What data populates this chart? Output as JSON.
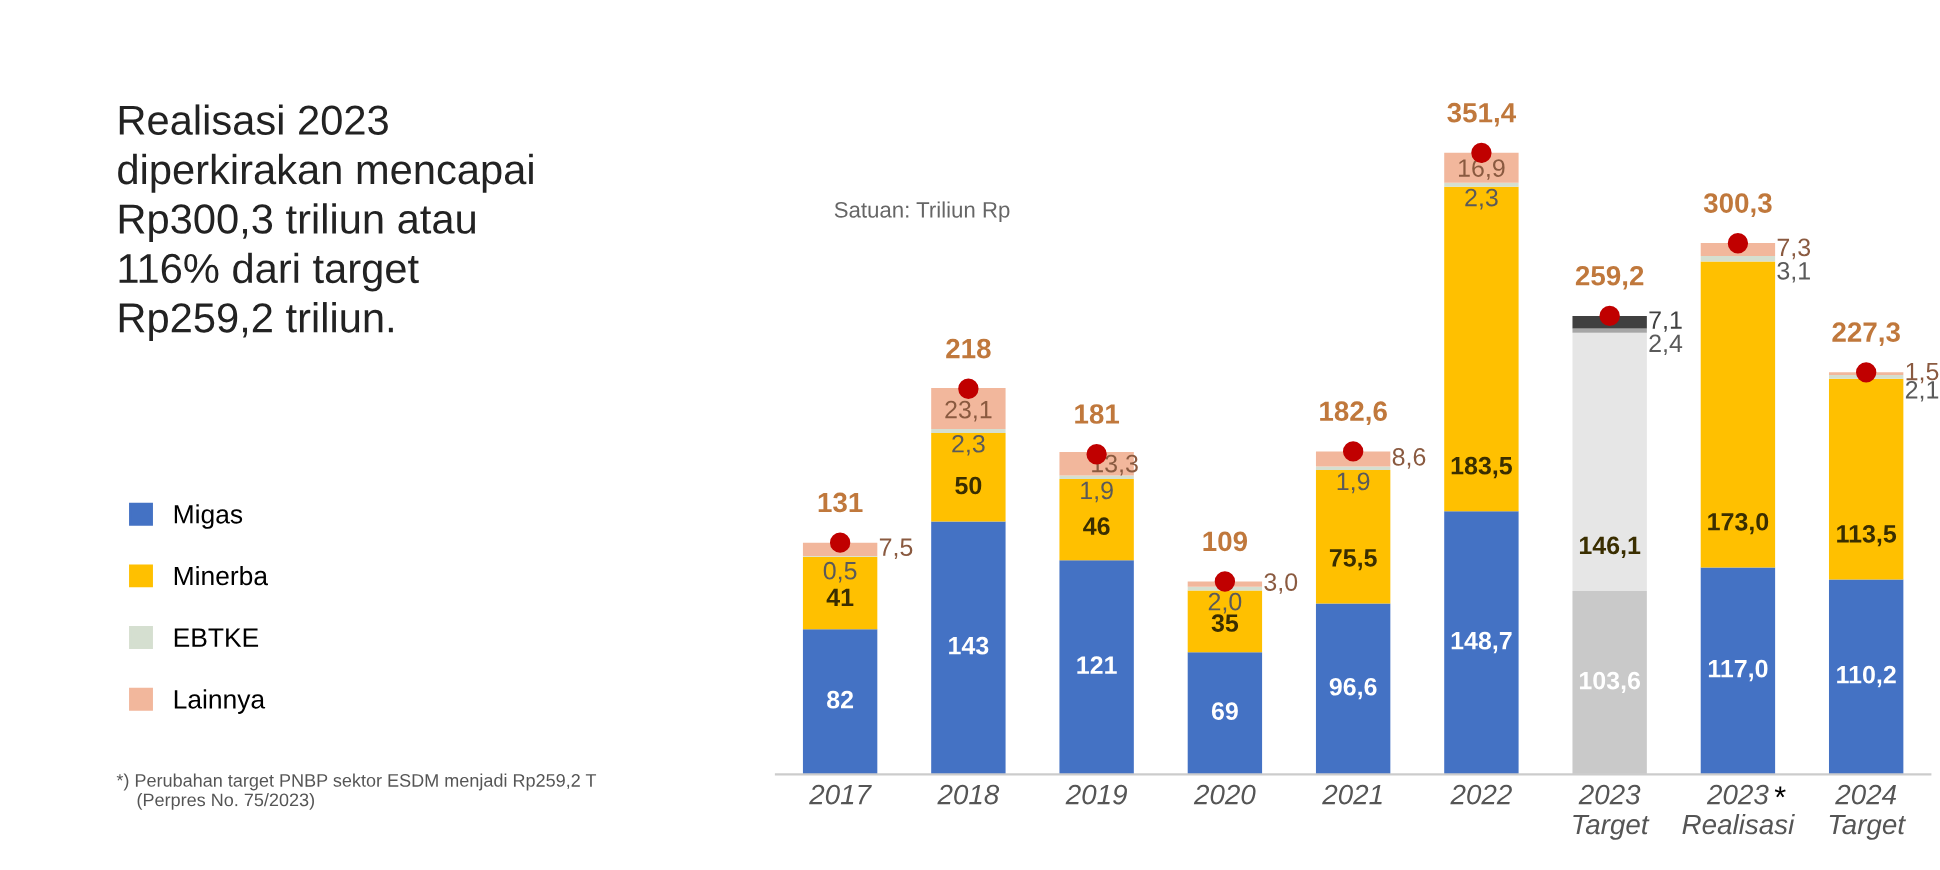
{
  "chart_data": {
    "type": "bar",
    "stacked": true,
    "title": "Realisasi 2023\ndiperkirakan mencapai\nRp300,3 triliun atau\n116% dari target\nRp259,2 triliun.",
    "subtitle": "Satuan: Triliun Rp",
    "categories": [
      "2017",
      "2018",
      "2019",
      "2020",
      "2021",
      "2022",
      "2023\nTarget",
      "2023\nRealisasi",
      "2024\nTarget"
    ],
    "series": [
      {
        "name": "Migas",
        "color": "#4472c4",
        "colors": [
          "#4472c4",
          "#4472c4",
          "#4472c4",
          "#4472c4",
          "#4472c4",
          "#4472c4",
          "#c9c9c9",
          "#4472c4",
          "#4472c4"
        ],
        "values": [
          82,
          143,
          121,
          69,
          96.6,
          148.7,
          103.6,
          117.0,
          110.2
        ],
        "value_labels": [
          "82",
          "143",
          "121",
          "69",
          "96,6",
          "148,7",
          "103,6",
          "117,0",
          "110,2"
        ]
      },
      {
        "name": "Minerba",
        "color": "#ffc000",
        "colors": [
          "#ffc000",
          "#ffc000",
          "#ffc000",
          "#ffc000",
          "#ffc000",
          "#ffc000",
          "#e6e6e6",
          "#ffc000",
          "#ffc000"
        ],
        "values": [
          41,
          50,
          46,
          35,
          75.5,
          183.5,
          146.1,
          173.0,
          113.5
        ],
        "value_labels": [
          "41",
          "50",
          "46",
          "35",
          "75,5",
          "183,5",
          "146,1",
          "173,0",
          "113,5"
        ]
      },
      {
        "name": "EBTKE",
        "color": "#d5dfd0",
        "colors": [
          "#d5dfd0",
          "#d5dfd0",
          "#d5dfd0",
          "#d5dfd0",
          "#d5dfd0",
          "#d5dfd0",
          "#a6a6a6",
          "#d5dfd0",
          "#d5dfd0"
        ],
        "values": [
          0.5,
          2.3,
          1.9,
          2.0,
          1.9,
          2.3,
          2.4,
          3.1,
          2.1
        ],
        "value_labels": [
          "0,5",
          "2,3",
          "1,9",
          "2,0",
          "1,9",
          "2,3",
          "2,4",
          "3,1",
          "2,1"
        ]
      },
      {
        "name": "Lainnya",
        "color": "#f2b79c",
        "colors": [
          "#f2b79c",
          "#f2b79c",
          "#f2b79c",
          "#f2b79c",
          "#f2b79c",
          "#f2b79c",
          "#404040",
          "#f2b79c",
          "#f2b79c"
        ],
        "values": [
          7.5,
          23.1,
          13.3,
          3.0,
          8.6,
          16.9,
          7.1,
          7.3,
          1.5
        ],
        "value_labels": [
          "7,5",
          "23,1",
          "13,3",
          "3,0",
          "8,6",
          "16,9",
          "7,1",
          "7,3",
          "1,5"
        ]
      },
      {
        "type": "scatter",
        "color": "#c00000",
        "value_labels": [
          "131",
          "218",
          "181",
          "109",
          "182,6",
          "351,4",
          "259,2",
          "300,3",
          "227,3"
        ],
        "values": [
          131,
          218,
          181,
          109,
          182.6,
          351.4,
          259.2,
          300.3,
          227.3
        ]
      }
    ],
    "tick_labels": "x",
    "grid": false,
    "legend": "left",
    "marker": "circle",
    "annotations": [
      "*",
      "*) Perubahan target PNBP sektor ESDM menjadi Rp259,2 T\n    (Perpres No. 75/2023)"
    ]
  }
}
